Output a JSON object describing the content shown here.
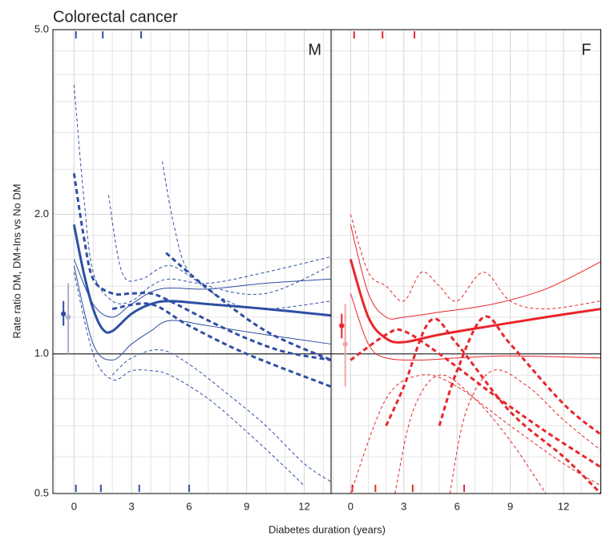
{
  "title": "Colorectal cancer",
  "y_label": "Rate ratio DM, DM+Ins vs No DM",
  "x_label": "Diabetes duration (years)",
  "chart_data": [
    {
      "type": "line",
      "panel_label": "M",
      "log_y": true,
      "grid": true,
      "xlim": [
        -1.1,
        13.4
      ],
      "ylim": [
        0.5,
        5
      ],
      "xticks": [
        0,
        3,
        6,
        9,
        12
      ],
      "yticks": [
        {
          "value": 0.5,
          "label": "0.5"
        },
        {
          "value": 1,
          "label": "1.0"
        },
        {
          "value": 2,
          "label": "2.0"
        },
        {
          "value": 5,
          "label": "5.0"
        }
      ],
      "x_grid": [
        -1,
        1,
        2,
        4,
        5,
        7,
        8,
        10,
        11,
        13
      ],
      "y_grid": [
        0.6,
        0.7,
        0.8,
        0.9,
        1.2,
        1.4,
        1.6,
        1.8,
        2.5,
        3,
        3.5,
        4,
        4.5
      ],
      "reference": 1,
      "rug_top": [
        0.1,
        1.5,
        3.5
      ],
      "rug_bottom": [
        0.1,
        1.4,
        3.4,
        6.0
      ],
      "rug_color": "#2e4fa3",
      "points": [
        {
          "x": -0.55,
          "value": 1.22,
          "low": 1.15,
          "high": 1.3,
          "color": "#2e4fa3"
        },
        {
          "x": -0.3,
          "value": 1.2,
          "low": 1.0,
          "high": 1.42,
          "color": "#a9aed0"
        }
      ],
      "series": [
        {
          "color": "#2e4fa3",
          "width": 3,
          "dash": false,
          "x": [
            0,
            0.5,
            1,
            1.5,
            2,
            3,
            4,
            5,
            7,
            10,
            13.4
          ],
          "values": [
            1.9,
            1.5,
            1.25,
            1.13,
            1.12,
            1.22,
            1.28,
            1.3,
            1.28,
            1.25,
            1.21
          ]
        },
        {
          "color": "#2e4fa3",
          "width": 1,
          "dash": false,
          "x": [
            0,
            1,
            2,
            3,
            4.5,
            7,
            10,
            13.4
          ],
          "values": [
            1.6,
            1.28,
            1.2,
            1.28,
            1.38,
            1.38,
            1.42,
            1.45
          ]
        },
        {
          "color": "#2e4fa3",
          "width": 1,
          "dash": false,
          "x": [
            0,
            1,
            2,
            3,
            4,
            5,
            7,
            10,
            13.4
          ],
          "values": [
            1.55,
            1.05,
            0.97,
            1.05,
            1.12,
            1.18,
            1.15,
            1.1,
            1.05
          ]
        },
        {
          "color": "#2e4fa3",
          "width": 1,
          "dash": true,
          "x": [
            0,
            0.5,
            1,
            2,
            3,
            4,
            5,
            7,
            10,
            13.4
          ],
          "values": [
            3.8,
            2.2,
            1.5,
            1.3,
            1.3,
            1.4,
            1.45,
            1.42,
            1.5,
            1.62
          ]
        },
        {
          "color": "#2e4fa3",
          "width": 1,
          "dash": true,
          "x": [
            0,
            1,
            2,
            3,
            4,
            5,
            7,
            9,
            11,
            12
          ],
          "values": [
            1.5,
            1.0,
            0.88,
            0.92,
            0.92,
            0.9,
            0.8,
            0.68,
            0.57,
            0.52
          ]
        },
        {
          "color": "#2e4fa3",
          "width": 1,
          "dash": true,
          "x": [
            1.8,
            2.5,
            3.5,
            5,
            7,
            10,
            13.4
          ],
          "values": [
            2.2,
            1.5,
            1.45,
            1.55,
            1.4,
            1.35,
            1.55
          ]
        },
        {
          "color": "#2e4fa3",
          "width": 1,
          "dash": true,
          "x": [
            4.6,
            5.2,
            6,
            8,
            10,
            13.4
          ],
          "values": [
            2.6,
            1.9,
            1.5,
            1.3,
            1.25,
            1.3
          ]
        },
        {
          "color": "#2e4fa3",
          "width": 1,
          "dash": true,
          "x": [
            2,
            3,
            4.5,
            6,
            8,
            10,
            12,
            13.4
          ],
          "values": [
            0.9,
            0.98,
            1.02,
            0.95,
            0.82,
            0.7,
            0.58,
            0.53
          ]
        },
        {
          "color": "#2e4fa3",
          "width": 3,
          "dash": true,
          "x": [
            0,
            0.5,
            1,
            2,
            3,
            4,
            5,
            7,
            9,
            11,
            13.4
          ],
          "values": [
            2.45,
            1.8,
            1.45,
            1.35,
            1.35,
            1.35,
            1.3,
            1.18,
            1.08,
            1.01,
            0.97
          ]
        },
        {
          "color": "#2e4fa3",
          "width": 3,
          "dash": true,
          "x": [
            4.8,
            7,
            10,
            13.4
          ],
          "values": [
            1.65,
            1.38,
            1.12,
            0.97
          ]
        },
        {
          "color": "#2e4fa3",
          "width": 3,
          "dash": true,
          "x": [
            2,
            4,
            6,
            9,
            13.4
          ],
          "values": [
            1.25,
            1.28,
            1.15,
            1.0,
            0.85
          ]
        }
      ]
    },
    {
      "type": "line",
      "panel_label": "F",
      "log_y": true,
      "grid": true,
      "xlim": [
        -1.1,
        14.1
      ],
      "ylim": [
        0.5,
        5
      ],
      "xticks": [
        0,
        3,
        6,
        9,
        12
      ],
      "x_grid": [
        -1,
        1,
        2,
        4,
        5,
        7,
        8,
        10,
        11,
        13,
        14
      ],
      "y_grid": [
        0.6,
        0.7,
        0.8,
        0.9,
        1.2,
        1.4,
        1.6,
        1.8,
        2.5,
        3,
        3.5,
        4,
        4.5
      ],
      "reference": 1,
      "rug_top": [
        0.2,
        1.8,
        3.6
      ],
      "rug_bottom": [
        0.1,
        1.4,
        3.5,
        6.4
      ],
      "rug_color": "#e8262b",
      "points": [
        {
          "x": -0.5,
          "value": 1.15,
          "low": 1.08,
          "high": 1.22,
          "color": "#e8262b"
        },
        {
          "x": -0.3,
          "value": 1.05,
          "low": 0.85,
          "high": 1.28,
          "color": "#f2a6a8"
        }
      ],
      "series": [
        {
          "color": "#e8262b",
          "width": 3,
          "dash": false,
          "x": [
            0,
            1,
            2,
            3,
            5,
            8,
            11,
            14.1
          ],
          "values": [
            1.6,
            1.2,
            1.08,
            1.06,
            1.1,
            1.15,
            1.2,
            1.25
          ]
        },
        {
          "color": "#e8262b",
          "width": 1,
          "dash": false,
          "x": [
            0,
            1,
            2,
            3,
            5,
            8,
            11,
            14.1
          ],
          "values": [
            1.9,
            1.35,
            1.2,
            1.2,
            1.23,
            1.28,
            1.38,
            1.58
          ]
        },
        {
          "color": "#e8262b",
          "width": 1,
          "dash": false,
          "x": [
            0,
            1,
            2,
            4,
            6,
            9,
            14.1
          ],
          "values": [
            1.35,
            1.05,
            0.98,
            0.97,
            0.98,
            0.99,
            0.98
          ]
        },
        {
          "color": "#e8262b",
          "width": 1,
          "dash": true,
          "x": [
            0,
            1,
            2,
            3,
            4,
            5,
            6,
            7.5,
            9,
            11,
            14.1
          ],
          "values": [
            2.0,
            1.5,
            1.4,
            1.3,
            1.5,
            1.4,
            1.3,
            1.5,
            1.3,
            1.25,
            1.3
          ]
        },
        {
          "color": "#e8262b",
          "width": 1,
          "dash": true,
          "x": [
            0,
            2,
            4,
            6,
            9,
            12,
            14.1
          ],
          "values": [
            0.5,
            0.8,
            0.9,
            0.85,
            0.7,
            0.58,
            0.52
          ]
        },
        {
          "color": "#e8262b",
          "width": 1,
          "dash": true,
          "x": [
            2.5,
            3.5,
            5,
            7,
            9,
            11
          ],
          "values": [
            0.5,
            0.75,
            0.9,
            0.8,
            0.65,
            0.5
          ]
        },
        {
          "color": "#e8262b",
          "width": 1,
          "dash": true,
          "x": [
            5.6,
            6.5,
            8,
            10,
            12,
            14.1
          ],
          "values": [
            0.5,
            0.75,
            0.92,
            0.85,
            0.72,
            0.62
          ]
        },
        {
          "color": "#e8262b",
          "width": 3,
          "dash": true,
          "x": [
            0,
            2,
            3,
            5,
            8,
            11,
            14.1
          ],
          "values": [
            0.97,
            1.1,
            1.12,
            1.0,
            0.82,
            0.68,
            0.57
          ]
        },
        {
          "color": "#e8262b",
          "width": 3,
          "dash": true,
          "x": [
            2,
            3,
            4.5,
            6,
            9,
            12,
            14.1
          ],
          "values": [
            0.7,
            0.85,
            1.18,
            1.05,
            0.75,
            0.6,
            0.5
          ]
        },
        {
          "color": "#e8262b",
          "width": 3,
          "dash": true,
          "x": [
            5,
            6,
            7.5,
            9,
            12,
            14.1
          ],
          "values": [
            0.7,
            0.92,
            1.2,
            1.05,
            0.78,
            0.67
          ]
        }
      ]
    }
  ]
}
